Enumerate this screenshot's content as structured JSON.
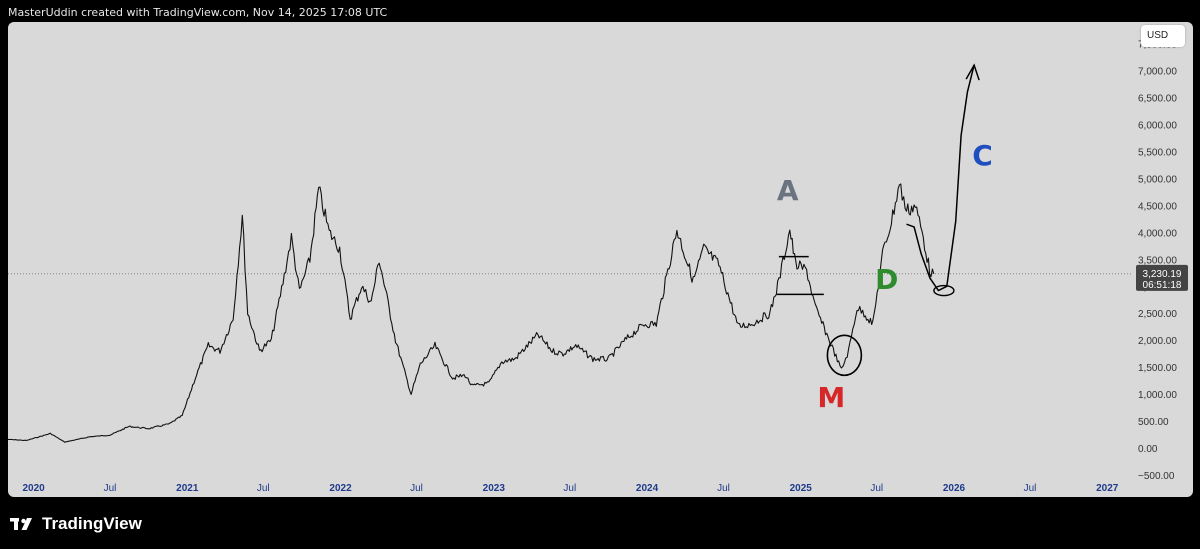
{
  "header": {
    "attribution": "MasterUddin created with TradingView.com, Nov 14, 2025 17:08 UTC"
  },
  "footer": {
    "brand": "TradingView"
  },
  "toolbar": {
    "currency": "USD"
  },
  "colors": {
    "background": "#d9d9d9",
    "price_line": "#111111",
    "axis_text": "#1e3a8a",
    "y_axis_text": "#333333",
    "last_price_tag": "#444444",
    "annotation_gray": "#6b7280",
    "annotation_red": "#d62828",
    "annotation_green": "#2e8b2e",
    "annotation_blue": "#1f4fbf"
  },
  "chart_data": {
    "type": "line",
    "y_axis_position": "right",
    "ylim": [
      -500,
      7900
    ],
    "y_ticks": [
      -500,
      0,
      500,
      1000,
      1500,
      2000,
      2500,
      3000,
      3500,
      4000,
      4500,
      5000,
      5500,
      6000,
      6500,
      7000,
      7500
    ],
    "y_tick_labels": [
      "−500.00",
      "0.00",
      "500.00",
      "1,000.00",
      "1,500.00",
      "2,000.00",
      "2,500.00",
      "3,000.00",
      "3,500.00",
      "4,000.00",
      "4,500.00",
      "5,000.00",
      "5,500.00",
      "6,000.00",
      "6,500.00",
      "7,000.00",
      "7,500.00"
    ],
    "x_range": [
      "2019-11-01",
      "2027-03-01"
    ],
    "x_ticks": [
      {
        "date": "2020-01-01",
        "label": "2020"
      },
      {
        "date": "2020-07-01",
        "label": "Jul"
      },
      {
        "date": "2021-01-01",
        "label": "2021"
      },
      {
        "date": "2021-07-01",
        "label": "Jul"
      },
      {
        "date": "2022-01-01",
        "label": "2022"
      },
      {
        "date": "2022-07-01",
        "label": "Jul"
      },
      {
        "date": "2023-01-01",
        "label": "2023"
      },
      {
        "date": "2023-07-01",
        "label": "Jul"
      },
      {
        "date": "2024-01-01",
        "label": "2024"
      },
      {
        "date": "2024-07-01",
        "label": "Jul"
      },
      {
        "date": "2025-01-01",
        "label": "2025"
      },
      {
        "date": "2025-07-01",
        "label": "Jul"
      },
      {
        "date": "2026-01-01",
        "label": "2026"
      },
      {
        "date": "2026-07-01",
        "label": "Jul"
      },
      {
        "date": "2027-01-01",
        "label": "2027"
      }
    ],
    "series": [
      {
        "x": [
          "2019-11-01",
          "2019-12-15",
          "2020-02-10",
          "2020-03-15",
          "2020-05-15",
          "2020-07-01",
          "2020-08-15",
          "2020-10-01",
          "2020-11-20",
          "2020-12-20",
          "2021-01-20",
          "2021-02-20",
          "2021-03-20",
          "2021-04-20",
          "2021-05-12",
          "2021-05-25",
          "2021-06-22",
          "2021-07-20",
          "2021-08-20",
          "2021-09-06",
          "2021-09-25",
          "2021-10-20",
          "2021-11-10",
          "2021-12-05",
          "2021-12-30",
          "2022-01-24",
          "2022-02-20",
          "2022-03-15",
          "2022-04-03",
          "2022-05-12",
          "2022-06-18",
          "2022-07-10",
          "2022-08-14",
          "2022-09-25",
          "2022-10-25",
          "2022-11-10",
          "2022-12-20",
          "2023-01-20",
          "2023-02-20",
          "2023-04-16",
          "2023-05-20",
          "2023-06-15",
          "2023-07-15",
          "2023-08-25",
          "2023-10-01",
          "2023-11-10",
          "2023-12-25",
          "2024-01-23",
          "2024-03-12",
          "2024-04-20",
          "2024-05-15",
          "2024-06-20",
          "2024-08-05",
          "2024-09-06",
          "2024-10-20",
          "2024-11-10",
          "2024-12-06",
          "2024-12-20",
          "2025-01-15",
          "2025-02-05",
          "2025-03-10",
          "2025-04-08",
          "2025-04-25",
          "2025-05-15",
          "2025-06-01",
          "2025-06-22",
          "2025-07-15",
          "2025-08-05",
          "2025-08-24",
          "2025-09-10",
          "2025-10-01",
          "2025-10-20",
          "2025-11-04",
          "2025-11-14"
        ],
        "y": [
          160,
          140,
          270,
          110,
          210,
          240,
          400,
          360,
          450,
          600,
          1300,
          1900,
          1800,
          2400,
          4300,
          2500,
          1800,
          2000,
          3200,
          3900,
          2900,
          3500,
          4800,
          4000,
          3700,
          2400,
          3000,
          2700,
          3500,
          2000,
          1000,
          1550,
          1900,
          1300,
          1350,
          1150,
          1200,
          1600,
          1650,
          2100,
          1800,
          1750,
          1900,
          1650,
          1650,
          2000,
          2300,
          2300,
          4050,
          3100,
          3700,
          3400,
          2250,
          2300,
          2500,
          3100,
          4050,
          3400,
          3300,
          2600,
          2000,
          1450,
          1800,
          2600,
          2500,
          2300,
          3600,
          4200,
          4900,
          4400,
          4500,
          3900,
          3300,
          3230
        ]
      }
    ],
    "last_price": {
      "value": 3230.19,
      "label": "3,230.19",
      "countdown": "06:51:18"
    },
    "annotations": [
      {
        "text": "A",
        "date": "2024-12-01",
        "value": 4600,
        "color": "#6b7280"
      },
      {
        "text": "M",
        "date": "2025-03-15",
        "value": 760,
        "color": "#d62828"
      },
      {
        "text": "D",
        "date": "2025-07-25",
        "value": 2950,
        "color": "#2e8b2e"
      },
      {
        "text": "C",
        "date": "2026-03-10",
        "value": 5250,
        "color": "#1f4fbf"
      }
    ]
  }
}
